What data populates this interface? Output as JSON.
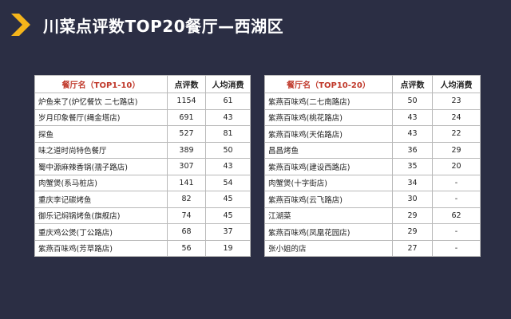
{
  "title": "川菜点评数TOP20餐厅—西湖区",
  "accent_color": "#f5b51b",
  "header_color": "#c0392b",
  "left_table": {
    "headers": [
      "餐厅名（TOP1-10）",
      "点评数",
      "人均消费"
    ],
    "rows": [
      [
        "炉鱼来了(炉忆餐饮 二七路店)",
        "1154",
        "61"
      ],
      [
        "岁月印象餐厅(绳金塔店)",
        "691",
        "43"
      ],
      [
        "探鱼",
        "527",
        "81"
      ],
      [
        "味之道时尚特色餐厅",
        "389",
        "50"
      ],
      [
        "蜀中源麻辣香锅(孺子路店)",
        "307",
        "43"
      ],
      [
        "肉蟹煲(系马桩店)",
        "141",
        "54"
      ],
      [
        "重庆李记碳烤鱼",
        "82",
        "45"
      ],
      [
        "御乐记焖锅烤鱼(旗舰店)",
        "74",
        "45"
      ],
      [
        "重庆鸡公煲(丁公路店)",
        "68",
        "37"
      ],
      [
        "紫燕百味鸡(芳草路店)",
        "56",
        "19"
      ]
    ]
  },
  "right_table": {
    "headers": [
      "餐厅名（TOP10-20）",
      "点评数",
      "人均消费"
    ],
    "rows": [
      [
        "紫燕百味鸡(二七南路店)",
        "50",
        "23"
      ],
      [
        "紫燕百味鸡(桃花路店)",
        "43",
        "24"
      ],
      [
        "紫燕百味鸡(天佑路店)",
        "43",
        "22"
      ],
      [
        "昌昌烤鱼",
        "36",
        "29"
      ],
      [
        "紫燕百味鸡(建设西路店)",
        "35",
        "20"
      ],
      [
        "肉蟹煲(十字街店)",
        "34",
        "-"
      ],
      [
        "紫燕百味鸡(云飞路店)",
        "30",
        "-"
      ],
      [
        "江湖菜",
        "29",
        "62"
      ],
      [
        "紫燕百味鸡(凤凰花园店)",
        "29",
        "-"
      ],
      [
        "张小姐的店",
        "27",
        "-"
      ]
    ]
  }
}
